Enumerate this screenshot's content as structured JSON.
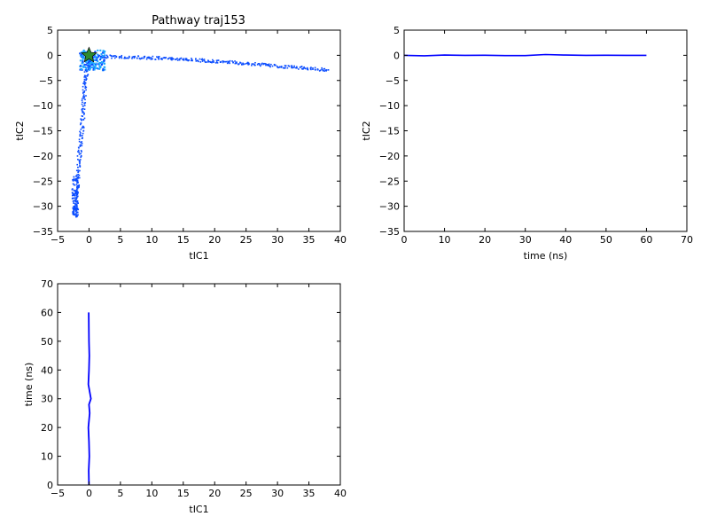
{
  "chart_data": [
    {
      "id": "p1",
      "type": "scatter",
      "title": "Pathway traj153",
      "xlabel": "tIC1",
      "ylabel": "tIC2",
      "xlim": [
        -5,
        40
      ],
      "ylim": [
        -35,
        5
      ],
      "xticks": [
        -5,
        0,
        5,
        10,
        15,
        20,
        25,
        30,
        35,
        40
      ],
      "yticks": [
        -35,
        -30,
        -25,
        -20,
        -15,
        -10,
        -5,
        0,
        5
      ],
      "grid": false,
      "style": "2d-histogram background with trajectory density",
      "colors": {
        "dense": "#1da9ff",
        "medium": "#0a4cff",
        "sparse": "#000080"
      },
      "marker": {
        "shape": "star",
        "x": 0,
        "y": 0,
        "color": "#2e8b2e"
      },
      "series": [
        {
          "points": [
            [
              38,
              -2.8
            ],
            [
              35,
              -2.5
            ],
            [
              32,
              -2.2
            ],
            [
              29,
              -1.9
            ],
            [
              26,
              -1.6
            ],
            [
              23,
              -1.3
            ],
            [
              20,
              -1.1
            ],
            [
              17,
              -0.8
            ],
            [
              14,
              -0.6
            ],
            [
              11,
              -0.4
            ],
            [
              8,
              -0.3
            ],
            [
              5,
              -0.2
            ],
            [
              2,
              -0.1
            ],
            [
              0,
              0
            ],
            [
              -0.5,
              -3
            ],
            [
              -0.8,
              -6
            ],
            [
              -1.0,
              -10
            ],
            [
              -1.2,
              -14
            ],
            [
              -1.5,
              -18
            ],
            [
              -1.8,
              -22
            ],
            [
              -2.0,
              -26
            ],
            [
              -2.3,
              -30
            ],
            [
              -2.4,
              -31.5
            ]
          ]
        }
      ]
    },
    {
      "id": "p2",
      "type": "line",
      "xlabel": "time (ns)",
      "ylabel": "tIC2",
      "xlim": [
        0,
        70
      ],
      "ylim": [
        -35,
        5
      ],
      "xticks": [
        0,
        10,
        20,
        30,
        40,
        50,
        60,
        70
      ],
      "yticks": [
        -35,
        -30,
        -25,
        -20,
        -15,
        -10,
        -5,
        0,
        5
      ],
      "grid": false,
      "color": "#0000ff",
      "series": [
        {
          "x": [
            0,
            5,
            10,
            15,
            20,
            25,
            30,
            35,
            40,
            45,
            50,
            55,
            60
          ],
          "values": [
            0,
            -0.1,
            0.05,
            0,
            0.02,
            -0.05,
            -0.05,
            0.15,
            0.05,
            0,
            0.02,
            0,
            0
          ]
        }
      ]
    },
    {
      "id": "p3",
      "type": "line",
      "xlabel": "tIC1",
      "ylabel": "time (ns)",
      "xlim": [
        -5,
        40
      ],
      "ylim": [
        0,
        70
      ],
      "xticks": [
        -5,
        0,
        5,
        10,
        15,
        20,
        25,
        30,
        35,
        40
      ],
      "yticks": [
        0,
        10,
        20,
        30,
        40,
        50,
        60,
        70
      ],
      "grid": false,
      "color": "#0000ff",
      "series": [
        {
          "x": [
            0,
            -0.05,
            0.05,
            0,
            -0.1,
            0.1,
            0,
            0.3,
            -0.1,
            0,
            0.05,
            0,
            -0.05
          ],
          "values": [
            0,
            5,
            10,
            15,
            20,
            25,
            28,
            30,
            35,
            40,
            45,
            50,
            60
          ]
        }
      ]
    }
  ]
}
